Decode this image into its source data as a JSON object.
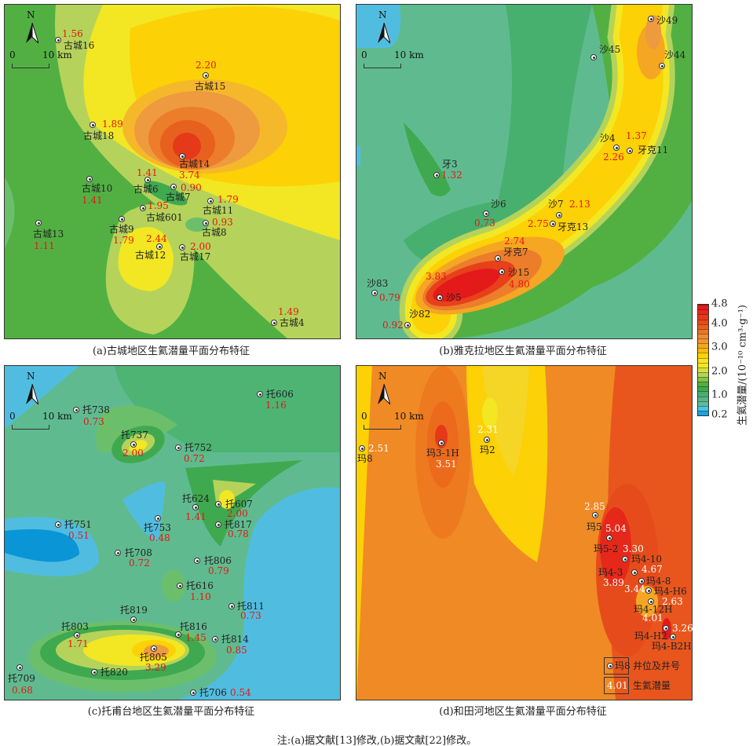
{
  "panels": {
    "a": {
      "caption": "(a)古城地区生氦潜量平面分布特征",
      "wells": [
        {
          "name": "古城16",
          "value": "1.56"
        },
        {
          "name": "古城15",
          "value": "2.20"
        },
        {
          "name": "古城18",
          "value": "1.89"
        },
        {
          "name": "古城14",
          "value": "3.74"
        },
        {
          "name": "古城6",
          "value": "1.41"
        },
        {
          "name": "古城7",
          "value": "0.90"
        },
        {
          "name": "古城10",
          "value": "1.41"
        },
        {
          "name": "古城11",
          "value": "1.79"
        },
        {
          "name": "古城601",
          "value": "1.95"
        },
        {
          "name": "古城8",
          "value": "0.93"
        },
        {
          "name": "古城9",
          "value": "1.79"
        },
        {
          "name": "古城13",
          "value": "1.11"
        },
        {
          "name": "古城12",
          "value": "2.44"
        },
        {
          "name": "古城17",
          "value": "2.00"
        },
        {
          "name": "古城4",
          "value": "1.49"
        }
      ]
    },
    "b": {
      "caption": "(b)雅克拉地区生氦潜量平面分布特征",
      "wells": [
        {
          "name": "沙49",
          "value": null
        },
        {
          "name": "沙45",
          "value": null
        },
        {
          "name": "沙44",
          "value": null
        },
        {
          "name": "沙4",
          "value": "2.26"
        },
        {
          "name": "牙克11",
          "value": "1.37"
        },
        {
          "name": "牙3",
          "value": "1.32"
        },
        {
          "name": "沙6",
          "value": "0.73"
        },
        {
          "name": "沙7",
          "value": "2.13"
        },
        {
          "name": "牙克13",
          "value": "2.75"
        },
        {
          "name": "牙克7",
          "value": "2.74"
        },
        {
          "name": "沙15",
          "value": "4.80"
        },
        {
          "name": "沙5",
          "value": "3.83"
        },
        {
          "name": "沙83",
          "value": "0.79"
        },
        {
          "name": "沙82",
          "value": "0.92"
        }
      ]
    },
    "c": {
      "caption": "(c)托甫台地区生氦潜量平面分布特征",
      "wells": [
        {
          "name": "托606",
          "value": "1.16"
        },
        {
          "name": "托738",
          "value": "0.73"
        },
        {
          "name": "托737",
          "value": "2.00"
        },
        {
          "name": "托752",
          "value": "0.72"
        },
        {
          "name": "托624",
          "value": "1.41"
        },
        {
          "name": "托607",
          "value": "2.00"
        },
        {
          "name": "托817",
          "value": "0.78"
        },
        {
          "name": "托751",
          "value": "0.51"
        },
        {
          "name": "托753",
          "value": "0.48"
        },
        {
          "name": "托708",
          "value": "0.72"
        },
        {
          "name": "托806",
          "value": "0.79"
        },
        {
          "name": "托616",
          "value": "1.10"
        },
        {
          "name": "托811",
          "value": "0.73"
        },
        {
          "name": "托819",
          "value": null
        },
        {
          "name": "托803",
          "value": "1.71"
        },
        {
          "name": "托816",
          "value": "1.45"
        },
        {
          "name": "托814",
          "value": "0.85"
        },
        {
          "name": "托805",
          "value": "3.29"
        },
        {
          "name": "托820",
          "value": null
        },
        {
          "name": "托709",
          "value": "0.68"
        },
        {
          "name": "托706",
          "value": "0.54"
        }
      ]
    },
    "d": {
      "caption": "(d)和田河地区生氦潜量平面分布特征",
      "wells": [
        {
          "name": "玛8",
          "value": "2.51"
        },
        {
          "name": "玛3-1H",
          "value": "3.51"
        },
        {
          "name": "玛2",
          "value": "2.31"
        },
        {
          "name": "玛5",
          "value": "2.85"
        },
        {
          "name": "玛5-2",
          "value": "5.04"
        },
        {
          "name": "玛4-10",
          "value": "3.30"
        },
        {
          "name": "玛4-3",
          "value": "3.89"
        },
        {
          "name": "玛4-8",
          "value": "3.44"
        },
        {
          "name": "玛4-H6",
          "value": "4.67"
        },
        {
          "name": "玛4-12H",
          "value": "2.63"
        },
        {
          "name": "玛4-H2",
          "value": "4.01"
        },
        {
          "name": "玛4-B2H",
          "value": "3.26"
        }
      ],
      "legend": {
        "well_sample": "玛8",
        "well_label": "井位及井号",
        "value_sample": "4.01",
        "value_label": "生氦潜量"
      }
    }
  },
  "north": "N",
  "scale": {
    "zero": "0",
    "ten": "10 km"
  },
  "colorbar": {
    "ticks": [
      "4.8",
      "4.0",
      "3.0",
      "2.0",
      "1.0",
      "0.2"
    ],
    "title": "生氦潜量/(10⁻¹⁰ cm³·g⁻¹)",
    "range": [
      0.2,
      4.8
    ],
    "colors": [
      "#1aa3e0",
      "#4cc3e0",
      "#5fbb9a",
      "#55b786",
      "#47ae6c",
      "#3fa94f",
      "#52b043",
      "#86c440",
      "#b5d35a",
      "#d8df3a",
      "#f2e722",
      "#fde21a",
      "#fcd105",
      "#f8b810",
      "#f5a623",
      "#f29630",
      "#ee8a37",
      "#ec7424",
      "#e8601d",
      "#e64c1b",
      "#e6391a",
      "#e5281a",
      "#e31a19"
    ]
  },
  "note": "注:(a)据文献[13]修改,(b)据文献[22]修改。"
}
